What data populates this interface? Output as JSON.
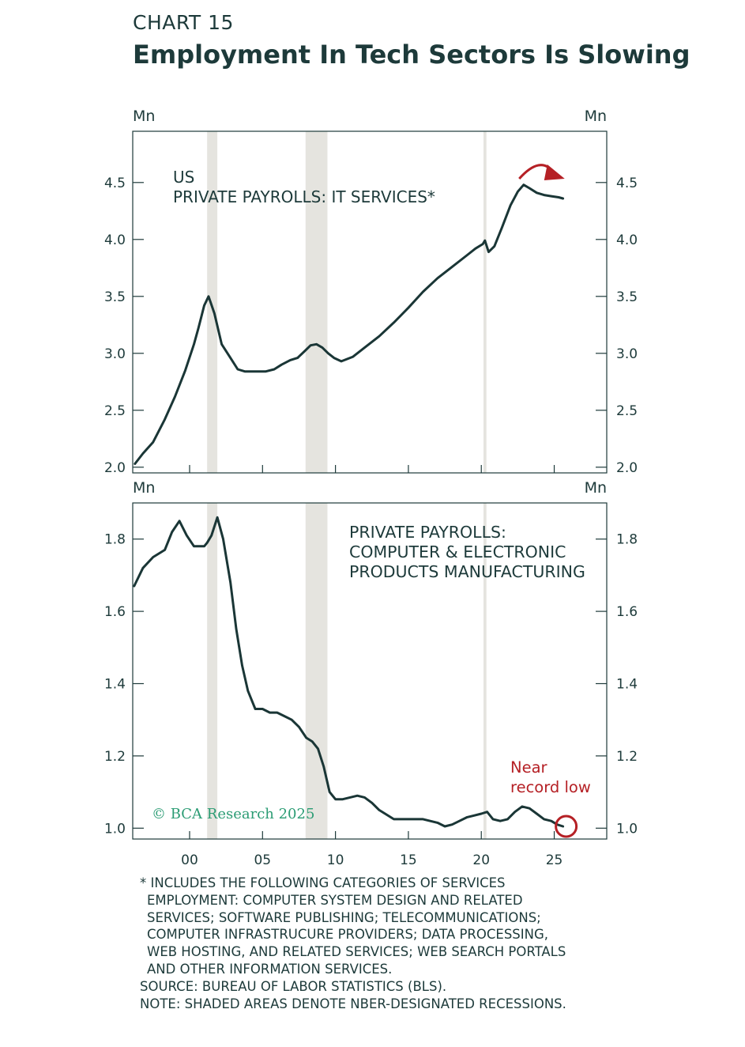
{
  "header": {
    "chart_number": "CHART 15",
    "title": "Employment In Tech Sectors Is Slowing"
  },
  "colors": {
    "line": "#1a3636",
    "recession_shade": "#e5e4df",
    "annotation_red": "#b52025",
    "copyright_green": "#2b9c74",
    "text": "#1d3a3a"
  },
  "copyright": "© BCA Research 2025",
  "recessions": [
    {
      "start": 2001.2,
      "end": 2001.9
    },
    {
      "start": 2007.95,
      "end": 2009.45
    },
    {
      "start": 2020.15,
      "end": 2020.35
    }
  ],
  "x_axis": {
    "tick_labels": [
      "00",
      "05",
      "10",
      "15",
      "20",
      "25"
    ],
    "tick_values": [
      2000,
      2005,
      2010,
      2015,
      2020,
      2025
    ],
    "range": [
      1996.1,
      2028.6
    ]
  },
  "chart_data": [
    {
      "type": "line",
      "title": "US\nPRIVATE PAYROLLS: IT SERVICES*",
      "unit_left": "Mn",
      "unit_right": "Mn",
      "ylim": [
        1.95,
        4.95
      ],
      "yticks": [
        2.0,
        2.5,
        3.0,
        3.5,
        4.0,
        4.5
      ],
      "ytick_labels": [
        "2.0",
        "2.5",
        "3.0",
        "3.5",
        "4.0",
        "4.5"
      ],
      "annotation": "arrow over peak",
      "x": [
        1996.25,
        1996.8,
        1997.5,
        1998.3,
        1999.0,
        1999.7,
        2000.3,
        2000.6,
        2000.8,
        2001.0,
        2001.3,
        2001.7,
        2002.2,
        2002.8,
        2003.3,
        2003.8,
        2004.5,
        2005.2,
        2005.8,
        2006.3,
        2006.9,
        2007.4,
        2007.9,
        2008.3,
        2008.7,
        2009.1,
        2009.5,
        2009.9,
        2010.4,
        2011.2,
        2012.0,
        2013.0,
        2014.0,
        2015.0,
        2016.0,
        2017.0,
        2018.0,
        2019.0,
        2019.6,
        2020.1,
        2020.25,
        2020.5,
        2020.9,
        2021.4,
        2022.0,
        2022.5,
        2022.9,
        2023.3,
        2023.8,
        2024.3,
        2024.8,
        2025.3,
        2025.6
      ],
      "y": [
        2.03,
        2.12,
        2.22,
        2.42,
        2.62,
        2.85,
        3.08,
        3.22,
        3.32,
        3.42,
        3.5,
        3.35,
        3.08,
        2.96,
        2.86,
        2.84,
        2.84,
        2.84,
        2.86,
        2.9,
        2.94,
        2.96,
        3.02,
        3.07,
        3.08,
        3.05,
        3.0,
        2.96,
        2.93,
        2.97,
        3.05,
        3.15,
        3.27,
        3.4,
        3.54,
        3.66,
        3.76,
        3.86,
        3.92,
        3.96,
        3.99,
        3.89,
        3.94,
        4.1,
        4.3,
        4.42,
        4.48,
        4.45,
        4.41,
        4.39,
        4.38,
        4.37,
        4.36
      ]
    },
    {
      "type": "line",
      "title": "PRIVATE PAYROLLS:\nCOMPUTER & ELECTRONIC\nPRODUCTS MANUFACTURING",
      "unit_left": "Mn",
      "unit_right": "Mn",
      "ylim": [
        0.97,
        1.9
      ],
      "yticks": [
        1.0,
        1.2,
        1.4,
        1.6,
        1.8
      ],
      "ytick_labels": [
        "1.0",
        "1.2",
        "1.4",
        "1.6",
        "1.8"
      ],
      "annotation": "Near\nrecord low",
      "x": [
        1996.2,
        1996.8,
        1997.5,
        1998.3,
        1998.8,
        1999.3,
        1999.8,
        2000.3,
        2000.8,
        2001.0,
        2001.2,
        2001.5,
        2001.9,
        2002.3,
        2002.8,
        2003.2,
        2003.6,
        2004.0,
        2004.5,
        2005.0,
        2005.5,
        2006.0,
        2006.5,
        2007.0,
        2007.5,
        2008.0,
        2008.4,
        2008.8,
        2009.2,
        2009.6,
        2010.0,
        2010.5,
        2011.0,
        2011.5,
        2012.0,
        2012.5,
        2013.0,
        2014.0,
        2015.0,
        2016.0,
        2016.5,
        2017.0,
        2017.5,
        2018.0,
        2018.5,
        2019.0,
        2019.5,
        2020.0,
        2020.4,
        2020.8,
        2021.3,
        2021.8,
        2022.3,
        2022.8,
        2023.3,
        2023.8,
        2024.3,
        2024.8,
        2025.2,
        2025.6
      ],
      "y": [
        1.67,
        1.72,
        1.75,
        1.77,
        1.82,
        1.85,
        1.81,
        1.78,
        1.78,
        1.78,
        1.79,
        1.81,
        1.86,
        1.8,
        1.68,
        1.55,
        1.45,
        1.38,
        1.33,
        1.33,
        1.32,
        1.32,
        1.31,
        1.3,
        1.28,
        1.25,
        1.24,
        1.22,
        1.17,
        1.1,
        1.08,
        1.08,
        1.085,
        1.09,
        1.085,
        1.07,
        1.05,
        1.025,
        1.025,
        1.025,
        1.02,
        1.015,
        1.005,
        1.01,
        1.02,
        1.03,
        1.035,
        1.04,
        1.045,
        1.025,
        1.02,
        1.025,
        1.045,
        1.06,
        1.055,
        1.04,
        1.025,
        1.02,
        1.01,
        1.005
      ]
    }
  ],
  "footnotes": [
    "* INCLUDES THE FOLLOWING CATEGORIES OF SERVICES",
    "EMPLOYMENT: COMPUTER SYSTEM DESIGN AND RELATED",
    "SERVICES; SOFTWARE PUBLISHING; TELECOMMUNICATIONS;",
    "COMPUTER INFRASTRUCURE PROVIDERS; DATA PROCESSING,",
    "WEB HOSTING, AND RELATED SERVICES; WEB SEARCH PORTALS",
    "AND OTHER INFORMATION SERVICES.",
    "SOURCE: BUREAU OF LABOR STATISTICS (BLS).",
    "NOTE: SHADED AREAS DENOTE NBER-DESIGNATED RECESSIONS."
  ]
}
